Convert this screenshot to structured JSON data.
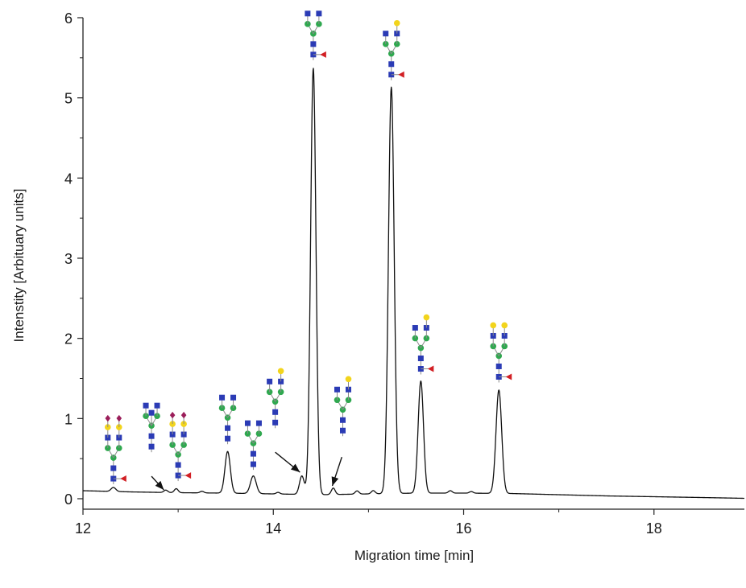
{
  "chart_data": {
    "type": "line",
    "xlabel": "Migration time [min]",
    "ylabel": "Intenstity [Arbituary units]",
    "xlim": [
      12,
      18.95
    ],
    "ylim": [
      0,
      6
    ],
    "x_ticks": [
      "12",
      "14",
      "16",
      "18"
    ],
    "y_ticks": [
      "0",
      "1",
      "2",
      "3",
      "4",
      "5",
      "6"
    ],
    "grid": false,
    "baseline": {
      "x": [
        12.0,
        12.5,
        13.0,
        13.5,
        14.0,
        14.5,
        15.0,
        15.5,
        16.0,
        16.5,
        17.0,
        17.5,
        18.0,
        18.5,
        18.95
      ],
      "y": [
        0.1,
        0.085,
        0.075,
        0.07,
        0.06,
        0.05,
        0.06,
        0.07,
        0.07,
        0.065,
        0.05,
        0.035,
        0.025,
        0.015,
        0.005
      ]
    },
    "peaks": [
      {
        "x": 12.32,
        "height": 0.05,
        "width": 0.025
      },
      {
        "x": 12.87,
        "height": 0.03,
        "width": 0.02
      },
      {
        "x": 12.98,
        "height": 0.05,
        "width": 0.02
      },
      {
        "x": 13.25,
        "height": 0.02,
        "width": 0.02
      },
      {
        "x": 13.52,
        "height": 0.52,
        "width": 0.028
      },
      {
        "x": 13.79,
        "height": 0.22,
        "width": 0.03
      },
      {
        "x": 14.05,
        "height": 0.02,
        "width": 0.02
      },
      {
        "x": 14.3,
        "height": 0.23,
        "width": 0.025
      },
      {
        "x": 14.42,
        "height": 5.32,
        "width": 0.028
      },
      {
        "x": 14.63,
        "height": 0.08,
        "width": 0.02
      },
      {
        "x": 14.88,
        "height": 0.04,
        "width": 0.02
      },
      {
        "x": 15.05,
        "height": 0.04,
        "width": 0.02
      },
      {
        "x": 15.24,
        "height": 5.07,
        "width": 0.03
      },
      {
        "x": 15.55,
        "height": 1.4,
        "width": 0.028
      },
      {
        "x": 15.86,
        "height": 0.03,
        "width": 0.02
      },
      {
        "x": 16.08,
        "height": 0.02,
        "width": 0.02
      },
      {
        "x": 16.37,
        "height": 1.29,
        "width": 0.03
      }
    ],
    "annotations": [
      {
        "type": "glycan",
        "x": 12.32,
        "y": 0.18,
        "name": "sialylated galactosylated core-fucosylated biantennary glycan"
      },
      {
        "type": "glycan",
        "x": 12.72,
        "y": 0.58,
        "name": "bisecting agalactosylated glycan"
      },
      {
        "type": "glycan",
        "x": 13.0,
        "y": 0.22,
        "name": "sialylated galactosylated core-fucosylated glycan"
      },
      {
        "type": "glycan",
        "x": 13.52,
        "y": 0.68,
        "name": "agalactosylated biantennary glycan"
      },
      {
        "type": "glycan",
        "x": 13.79,
        "y": 0.36,
        "name": "agalactosylated biantennary glycan"
      },
      {
        "type": "glycan",
        "x": 14.02,
        "y": 0.88,
        "name": "monogalactosylated biantennary glycan"
      },
      {
        "type": "glycan",
        "x": 14.42,
        "y": 5.47,
        "name": "agalactosylated core-fucosylated biantennary glycan"
      },
      {
        "type": "glycan",
        "x": 14.73,
        "y": 0.78,
        "name": "monogalactosylated biantennary glycan"
      },
      {
        "type": "glycan",
        "x": 15.24,
        "y": 5.22,
        "name": "monogalactosylated core-fucosylated biantennary glycan"
      },
      {
        "type": "glycan",
        "x": 15.55,
        "y": 1.55,
        "name": "monogalactosylated core-fucosylated biantennary glycan"
      },
      {
        "type": "glycan",
        "x": 16.37,
        "y": 1.45,
        "name": "digalactosylated core-fucosylated biantennary glycan"
      },
      {
        "type": "arrow",
        "from": [
          12.72,
          0.28
        ],
        "to": [
          12.85,
          0.11
        ]
      },
      {
        "type": "arrow",
        "from": [
          14.02,
          0.58
        ],
        "to": [
          14.28,
          0.33
        ]
      },
      {
        "type": "arrow",
        "from": [
          14.72,
          0.52
        ],
        "to": [
          14.62,
          0.16
        ]
      }
    ],
    "symbol_colors": {
      "hexnac": "#2b3bb5",
      "hexose": "#2fa84f",
      "galactose": "#f2d41c",
      "fucose": "#d21f24",
      "sialic_acid": "#9b1e5a",
      "linkage": "#8a8a8a"
    },
    "line_color": "#111111"
  }
}
